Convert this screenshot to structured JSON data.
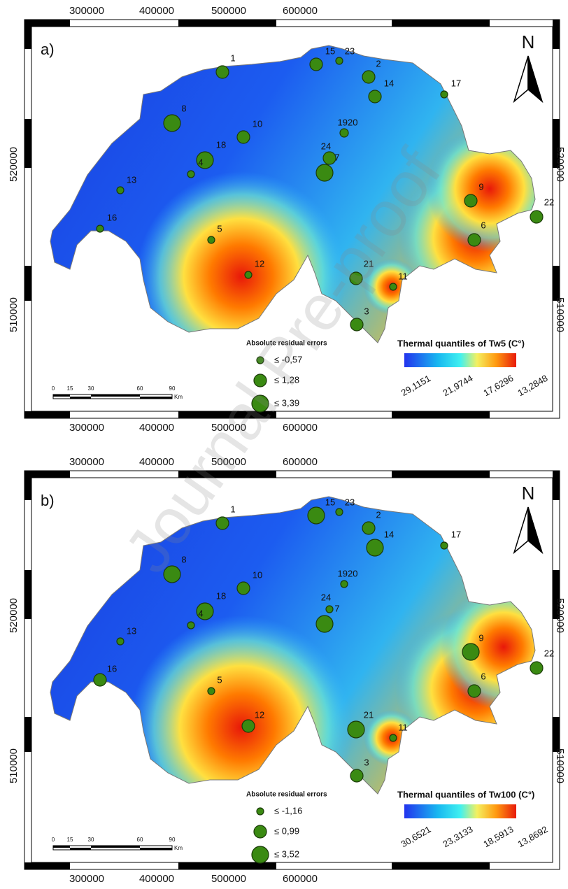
{
  "panels": [
    {
      "label": "a)",
      "north": "N",
      "top_ticks": [
        "300000",
        "400000",
        "500000",
        "600000"
      ],
      "bottom_ticks": [
        "300000",
        "400000",
        "500000",
        "600000"
      ],
      "left_ticks": [
        "520000",
        "510000"
      ],
      "right_ticks": [
        "520000",
        "510000"
      ],
      "stations": [
        "1",
        "15",
        "23",
        "2",
        "14",
        "17",
        "8",
        "10",
        "1920",
        "18",
        "4",
        "24",
        "7",
        "13",
        "9",
        "22",
        "16",
        "5",
        "6",
        "12",
        "21",
        "11",
        "3"
      ],
      "legend": {
        "title": "Absolute residual errors",
        "items": [
          "≤ -0,57",
          "≤ 1,28",
          "≤ 3,39"
        ]
      },
      "colorbar": {
        "title": "Thermal quantiles of Tw5 (C°)",
        "labels": [
          "29,1151",
          "21,9744",
          "17,6296",
          "13,2848"
        ]
      },
      "scale_bar": {
        "labels": [
          "0",
          "15",
          "30",
          "60",
          "90"
        ],
        "unit": "Km"
      }
    },
    {
      "label": "b)",
      "north": "N",
      "top_ticks": [
        "300000",
        "400000",
        "500000",
        "600000"
      ],
      "bottom_ticks": [
        "300000",
        "400000",
        "500000",
        "600000"
      ],
      "left_ticks": [
        "520000",
        "510000"
      ],
      "right_ticks": [
        "520000",
        "510000"
      ],
      "stations": [
        "1",
        "15",
        "23",
        "2",
        "14",
        "17",
        "8",
        "10",
        "1920",
        "18",
        "4",
        "24",
        "7",
        "13",
        "9",
        "22",
        "16",
        "5",
        "6",
        "12",
        "21",
        "11",
        "3"
      ],
      "legend": {
        "title": "Absolute residual errors",
        "items": [
          "≤  -1,16",
          "≤ 0,99",
          "≤  3,52"
        ]
      },
      "colorbar": {
        "title": "Thermal quantiles of Tw100 (C°)",
        "labels": [
          "30,6521",
          "23,3133",
          "18,5913",
          "13,8692"
        ]
      },
      "scale_bar": {
        "labels": [
          "0",
          "15",
          "30",
          "60",
          "90"
        ],
        "unit": "Km"
      }
    }
  ],
  "watermark": "Journal Pre-proof"
}
